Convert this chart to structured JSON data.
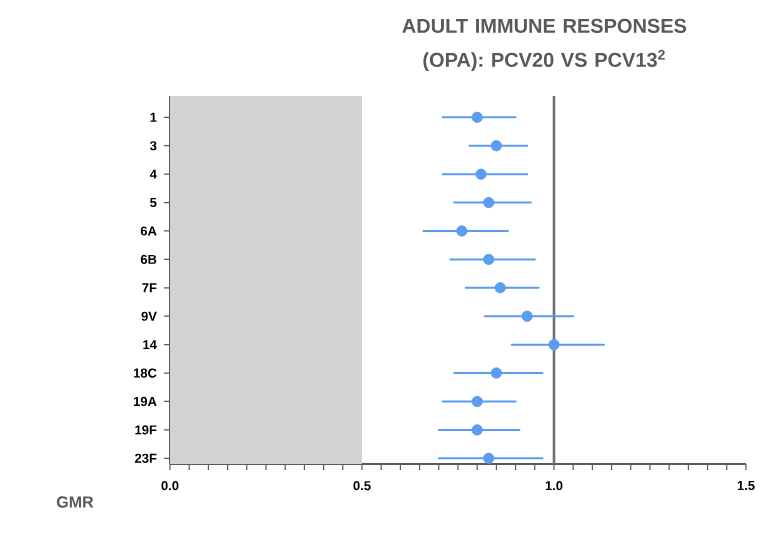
{
  "chart_data": {
    "type": "scatter",
    "orientation": "horizontal",
    "title": "ADULT IMMUNE RESPONSES (OPA): PCV20 VS PCV13$^{2}$",
    "xlabel": "GMR",
    "categories": [
      "1",
      "3",
      "4",
      "5",
      "6A",
      "6B",
      "7F",
      "9V",
      "14",
      "18C",
      "19A",
      "19F",
      "23F"
    ],
    "color": "#5a9cf0",
    "values": [
      0.8,
      0.85,
      0.81,
      0.83,
      0.76,
      0.83,
      0.86,
      0.93,
      1.0,
      0.85,
      0.8,
      0.8,
      0.83
    ],
    "errors": [
      [
        0.71,
        0.9
      ],
      [
        0.78,
        0.93
      ],
      [
        0.71,
        0.93
      ],
      [
        0.74,
        0.94
      ],
      [
        0.66,
        0.88
      ],
      [
        0.73,
        0.95
      ],
      [
        0.77,
        0.96
      ],
      [
        0.82,
        1.05
      ],
      [
        0.89,
        1.13
      ],
      [
        0.74,
        0.97
      ],
      [
        0.71,
        0.9
      ],
      [
        0.7,
        0.91
      ],
      [
        0.7,
        0.97
      ]
    ],
    "xlim": [
      0,
      1.5
    ],
    "xticks": [
      {
        "value": 0.0,
        "label": "0.0"
      },
      {
        "value": 0.05,
        "label": null
      },
      {
        "value": 0.1,
        "label": null
      },
      {
        "value": 0.15,
        "label": null
      },
      {
        "value": 0.2,
        "label": null
      },
      {
        "value": 0.25,
        "label": null
      },
      {
        "value": 0.3,
        "label": null
      },
      {
        "value": 0.35,
        "label": null
      },
      {
        "value": 0.4,
        "label": null
      },
      {
        "value": 0.45,
        "label": null
      },
      {
        "value": 0.5,
        "label": "0.5"
      },
      {
        "value": 0.55,
        "label": null
      },
      {
        "value": 0.6,
        "label": null
      },
      {
        "value": 0.65,
        "label": null
      },
      {
        "value": 0.7,
        "label": null
      },
      {
        "value": 0.75,
        "label": null
      },
      {
        "value": 0.8,
        "label": null
      },
      {
        "value": 0.85,
        "label": null
      },
      {
        "value": 0.9,
        "label": null
      },
      {
        "value": 0.95,
        "label": null
      },
      {
        "value": 1.0,
        "label": "1.0"
      },
      {
        "value": 1.05,
        "label": null
      },
      {
        "value": 1.1,
        "label": null
      },
      {
        "value": 1.15,
        "label": null
      },
      {
        "value": 1.2,
        "label": null
      },
      {
        "value": 1.25,
        "label": null
      },
      {
        "value": 1.3,
        "label": null
      },
      {
        "value": 1.35,
        "label": null
      },
      {
        "value": 1.4,
        "label": null
      },
      {
        "value": 1.45,
        "label": null
      },
      {
        "value": 1.5,
        "label": "1.5"
      }
    ],
    "bands": [
      {
        "axis": "x",
        "from": 0,
        "to": 0.5,
        "color": "#d3d3d3"
      }
    ],
    "ref_lines": [
      {
        "axis": "x",
        "value": 1.0,
        "color": "#707070"
      }
    ]
  }
}
